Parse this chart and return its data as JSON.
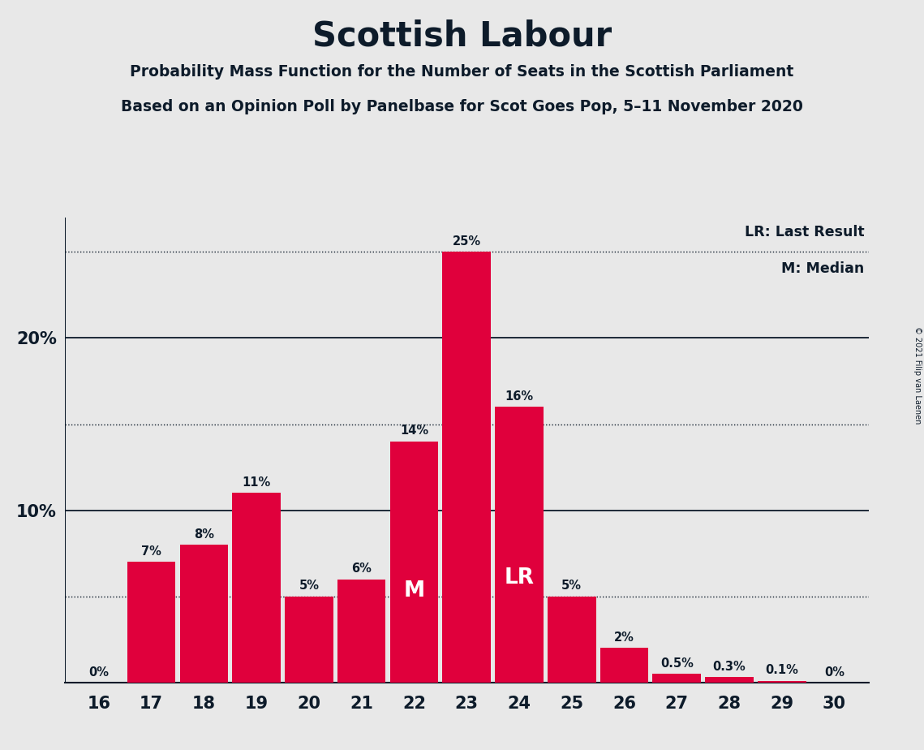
{
  "title": "Scottish Labour",
  "subtitle1": "Probability Mass Function for the Number of Seats in the Scottish Parliament",
  "subtitle2": "Based on an Opinion Poll by Panelbase for Scot Goes Pop, 5–11 November 2020",
  "copyright": "© 2021 Filip van Laenen",
  "seats": [
    16,
    17,
    18,
    19,
    20,
    21,
    22,
    23,
    24,
    25,
    26,
    27,
    28,
    29,
    30
  ],
  "probabilities": [
    0.0,
    7.0,
    8.0,
    11.0,
    5.0,
    6.0,
    14.0,
    25.0,
    16.0,
    5.0,
    2.0,
    0.5,
    0.3,
    0.1,
    0.0
  ],
  "bar_color": "#E0003C",
  "background_color": "#E8E8E8",
  "text_color": "#0D1B2A",
  "median_seat": 22,
  "last_result_seat": 24,
  "dotted_lines": [
    5.0,
    15.0,
    25.0
  ],
  "solid_lines": [
    10.0,
    20.0
  ],
  "y_ticks": [
    10.0,
    20.0
  ],
  "y_tick_labels": [
    "10%",
    "20%"
  ],
  "legend_lr": "LR: Last Result",
  "legend_m": "M: Median",
  "bar_labels": [
    "0%",
    "7%",
    "8%",
    "11%",
    "5%",
    "6%",
    "14%",
    "25%",
    "16%",
    "5%",
    "2%",
    "0.5%",
    "0.3%",
    "0.1%",
    "0%"
  ],
  "ylim": [
    0,
    27
  ],
  "xlim": [
    15.35,
    30.65
  ]
}
